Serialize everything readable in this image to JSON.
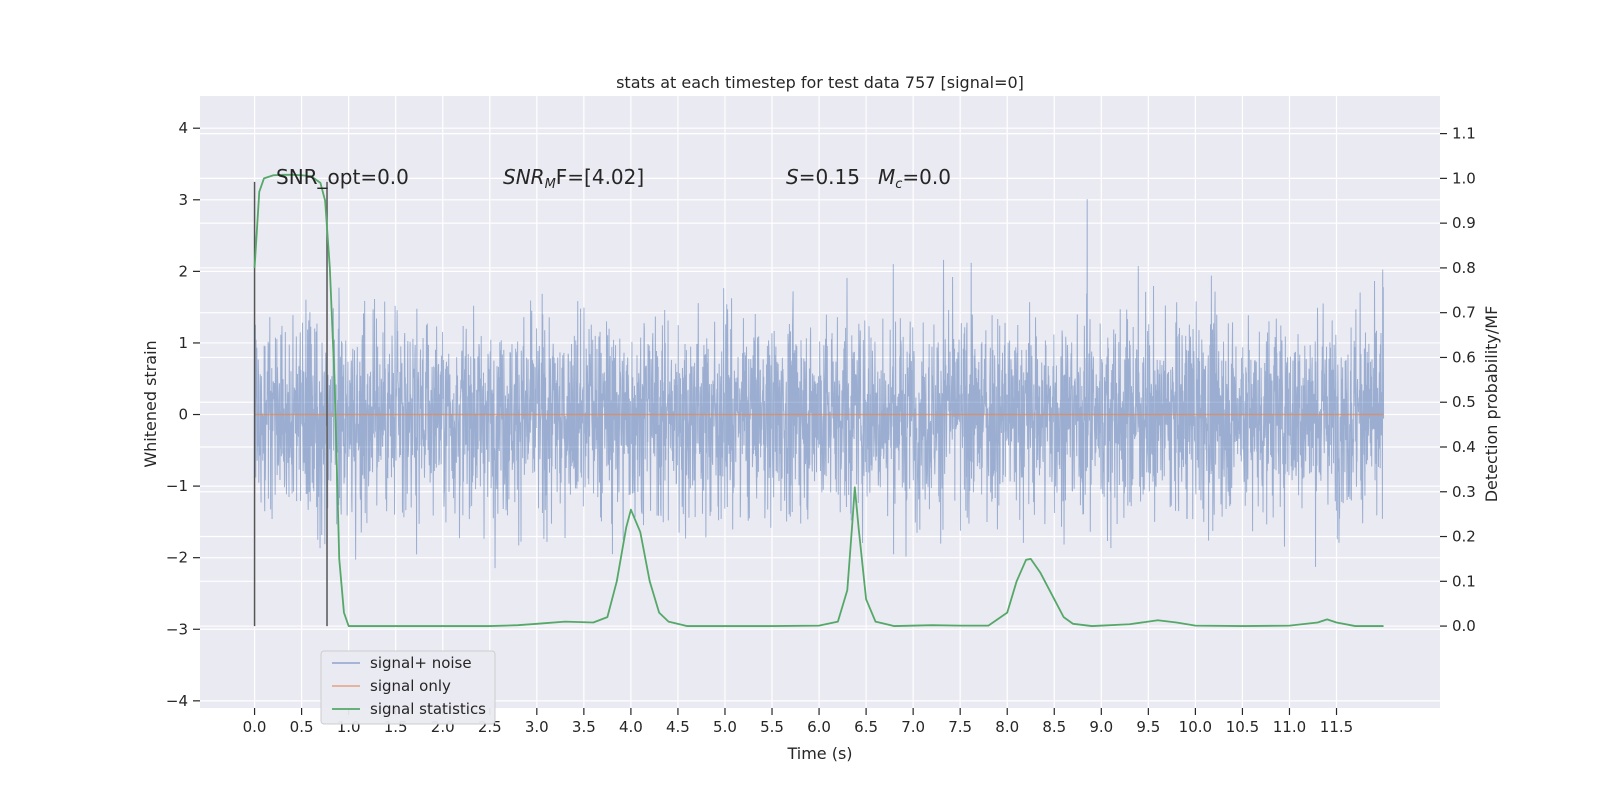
{
  "chart_data": {
    "type": "line",
    "title": "stats at each timestep for test data 757 [signal=0]",
    "xlabel": "Time (s)",
    "ylabel_left": "Whitened strain",
    "ylabel_right": "Detection probability/MF",
    "xlim": [
      -0.58,
      12.6
    ],
    "ylim_left": [
      -4.1,
      4.45
    ],
    "ylim_right": [
      -0.183,
      1.184
    ],
    "grid": true,
    "legend_position": "lower-left",
    "x_ticks": [
      "0.0",
      "0.5",
      "1.0",
      "1.5",
      "2.0",
      "2.5",
      "3.0",
      "3.5",
      "4.0",
      "4.5",
      "5.0",
      "5.5",
      "6.0",
      "6.5",
      "7.0",
      "7.5",
      "8.0",
      "8.5",
      "9.0",
      "9.5",
      "10.0",
      "10.5",
      "11.0",
      "11.5"
    ],
    "y_ticks_left": [
      "4",
      "3",
      "2",
      "1",
      "0",
      "−1",
      "−2",
      "−3",
      "−4"
    ],
    "y_ticks_right": [
      "1.1",
      "1.0",
      "0.9",
      "0.8",
      "0.7",
      "0.6",
      "0.5",
      "0.4",
      "0.3",
      "0.2",
      "0.1",
      "0.0"
    ],
    "annotations": {
      "snr_opt": "SNR_opt=0.0",
      "snr_mf_symbol": "SNR",
      "snr_mf_subscript": "M",
      "snr_mf_rest": "F=[4.02]",
      "s_symbol": "S",
      "s_value": "=0.15",
      "mc_symbol": "M",
      "mc_subscript": "c",
      "mc_value": "=0.0"
    },
    "series": [
      {
        "name": "signal+ noise",
        "color": "#4c72b0",
        "axis": "left",
        "style": "noise, envelope approx ±1.45 typical, peaks to ±2.5 to ±4",
        "t_range": [
          0.0,
          12.0
        ]
      },
      {
        "name": "signal only",
        "color": "#dd8452",
        "axis": "left",
        "x": [
          0.0,
          12.0
        ],
        "y": [
          0.0,
          0.0
        ]
      },
      {
        "name": "signal statistics",
        "color": "#55a868",
        "axis": "right",
        "x": [
          0.0,
          0.05,
          0.1,
          0.2,
          0.3,
          0.4,
          0.5,
          0.6,
          0.7,
          0.75,
          0.8,
          0.85,
          0.9,
          0.95,
          1.0,
          1.5,
          2.0,
          2.5,
          2.8,
          3.0,
          3.3,
          3.6,
          3.75,
          3.85,
          3.95,
          4.0,
          4.1,
          4.2,
          4.3,
          4.4,
          4.6,
          5.0,
          5.5,
          6.0,
          6.2,
          6.3,
          6.35,
          6.38,
          6.42,
          6.5,
          6.6,
          6.8,
          7.2,
          7.5,
          7.8,
          8.0,
          8.1,
          8.2,
          8.25,
          8.35,
          8.5,
          8.6,
          8.7,
          8.9,
          9.3,
          9.6,
          9.8,
          10.0,
          10.5,
          11.0,
          11.3,
          11.4,
          11.5,
          11.7,
          12.0
        ],
        "y": [
          0.8,
          0.97,
          1.0,
          1.007,
          1.008,
          1.008,
          1.007,
          1.005,
          0.99,
          0.95,
          0.8,
          0.55,
          0.15,
          0.03,
          0.0,
          0.0,
          0.0,
          0.0,
          0.002,
          0.005,
          0.01,
          0.008,
          0.02,
          0.1,
          0.22,
          0.26,
          0.21,
          0.1,
          0.03,
          0.01,
          0.0,
          0.0,
          0.0,
          0.001,
          0.01,
          0.08,
          0.22,
          0.31,
          0.22,
          0.06,
          0.01,
          0.0,
          0.002,
          0.001,
          0.001,
          0.03,
          0.1,
          0.148,
          0.15,
          0.12,
          0.06,
          0.02,
          0.005,
          0.0,
          0.004,
          0.013,
          0.008,
          0.001,
          0.0,
          0.001,
          0.008,
          0.015,
          0.008,
          0.0,
          0.0
        ]
      }
    ],
    "vertical_markers": [
      {
        "x": 0.0,
        "color": "#555555",
        "ylim_right": [
          0.0,
          1.0
        ]
      },
      {
        "x": 0.77,
        "color": "#555555",
        "ylim_right": [
          0.0,
          1.0
        ]
      }
    ]
  }
}
